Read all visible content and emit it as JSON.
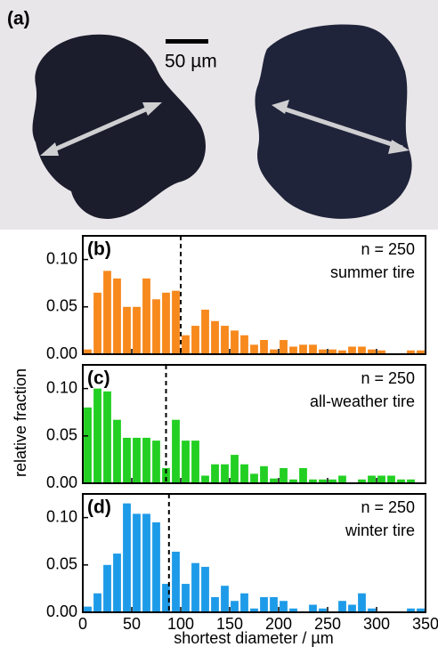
{
  "figure": {
    "panel_label": "(a)",
    "scale_bar_label": "50 µm",
    "xlabel": "shortest diameter / µm",
    "ylabel": "relative fraction"
  },
  "chart_data": [
    {
      "type": "histogram",
      "panel_label": "(b)",
      "annotation": "n = 250",
      "category": "summer tire",
      "color": "#f7891d",
      "bins": [
        0,
        10,
        20,
        30,
        40,
        50,
        60,
        70,
        80,
        90,
        100,
        110,
        120,
        130,
        140,
        150,
        160,
        170,
        180,
        190,
        200,
        210,
        220,
        230,
        240,
        250,
        260,
        270,
        280,
        290,
        300,
        310,
        320,
        330,
        340,
        350
      ],
      "values": [
        0.005,
        0.065,
        0.088,
        0.08,
        0.05,
        0.05,
        0.08,
        0.058,
        0.065,
        0.067,
        0.02,
        0.03,
        0.047,
        0.035,
        0.03,
        0.025,
        0.02,
        0.01,
        0.015,
        0.005,
        0.015,
        0.008,
        0.01,
        0.01,
        0.005,
        0.005,
        0.004,
        0.008,
        0.008,
        0.005,
        0.004,
        0,
        0,
        0.004,
        0.004
      ],
      "dashed_line_x": 100,
      "xlim": [
        0,
        350
      ],
      "xticks": [
        0,
        50,
        100,
        150,
        200,
        250,
        300,
        350
      ],
      "ylim": [
        0,
        0.125
      ],
      "yticks": [
        {
          "value": 0,
          "label": "0.00"
        },
        {
          "value": 0.05,
          "label": "0.05"
        },
        {
          "value": 0.1,
          "label": "0.10"
        }
      ],
      "show_xtick_labels": false
    },
    {
      "type": "histogram",
      "panel_label": "(c)",
      "annotation": "n = 250",
      "category": "all-weather tire",
      "color": "#22cf22",
      "bins": [
        0,
        10,
        20,
        30,
        40,
        50,
        60,
        70,
        80,
        90,
        100,
        110,
        120,
        130,
        140,
        150,
        160,
        170,
        180,
        190,
        200,
        210,
        220,
        230,
        240,
        250,
        260,
        270,
        280,
        290,
        300,
        310,
        320,
        330,
        340,
        350
      ],
      "values": [
        0.08,
        0.1,
        0.097,
        0.067,
        0.048,
        0.048,
        0.048,
        0.045,
        0.016,
        0.067,
        0.045,
        0.045,
        0.008,
        0.02,
        0.02,
        0.03,
        0.02,
        0.01,
        0.018,
        0.005,
        0.016,
        0.004,
        0.016,
        0.004,
        0.004,
        0.004,
        0.008,
        0,
        0.004,
        0.008,
        0.008,
        0.008,
        0.004,
        0.004,
        0
      ],
      "dashed_line_x": 85,
      "xlim": [
        0,
        350
      ],
      "xticks": [
        0,
        50,
        100,
        150,
        200,
        250,
        300,
        350
      ],
      "ylim": [
        0,
        0.125
      ],
      "yticks": [
        {
          "value": 0,
          "label": "0.00"
        },
        {
          "value": 0.05,
          "label": "0.05"
        },
        {
          "value": 0.1,
          "label": "0.10"
        }
      ],
      "show_xtick_labels": false
    },
    {
      "type": "histogram",
      "panel_label": "(d)",
      "annotation": "n = 250",
      "category": "winter tire",
      "color": "#1e9be8",
      "bins": [
        0,
        10,
        20,
        30,
        40,
        50,
        60,
        70,
        80,
        90,
        100,
        110,
        120,
        130,
        140,
        150,
        160,
        170,
        180,
        190,
        200,
        210,
        220,
        230,
        240,
        250,
        260,
        270,
        280,
        290,
        300,
        310,
        320,
        330,
        340,
        350
      ],
      "values": [
        0.006,
        0.02,
        0.05,
        0.062,
        0.115,
        0.104,
        0.104,
        0.095,
        0.03,
        0.064,
        0.03,
        0.052,
        0.048,
        0.016,
        0.028,
        0.012,
        0.02,
        0.004,
        0.016,
        0.016,
        0.012,
        0.004,
        0,
        0.008,
        0.004,
        0,
        0.012,
        0.008,
        0.02,
        0.004,
        0,
        0,
        0,
        0.004,
        0.004
      ],
      "dashed_line_x": 88,
      "xlim": [
        0,
        350
      ],
      "xticks": [
        0,
        50,
        100,
        150,
        200,
        250,
        300,
        350
      ],
      "ylim": [
        0,
        0.125
      ],
      "yticks": [
        {
          "value": 0,
          "label": "0.00"
        },
        {
          "value": 0.05,
          "label": "0.05"
        },
        {
          "value": 0.1,
          "label": "0.10"
        }
      ],
      "show_xtick_labels": true
    }
  ]
}
